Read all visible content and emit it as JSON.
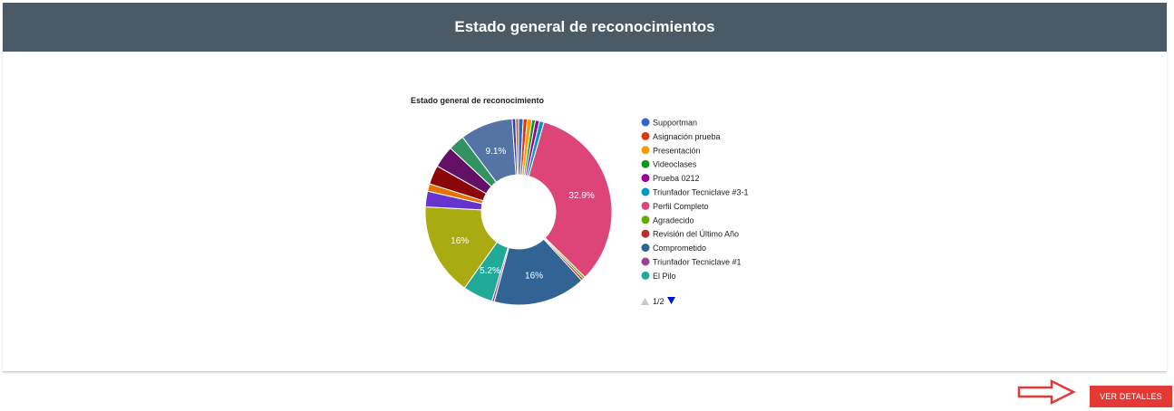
{
  "header": {
    "title": "Estado general de reconocimientos"
  },
  "actions": {
    "details_label": "VER DETALLES"
  },
  "colors": {
    "header_bg": "#4a5b67",
    "button_bg": "#e53935",
    "arrow": "#e53935"
  },
  "chart_data": {
    "type": "pie",
    "donut": true,
    "title": "Estado general de reconocimiento",
    "legend_position": "right",
    "legend_page": "1/2",
    "slices": [
      {
        "name": "Supportman",
        "value": 0.8,
        "color": "#3366cc"
      },
      {
        "name": "Asignación prueba",
        "value": 0.7,
        "color": "#dc3912"
      },
      {
        "name": "Presentación",
        "value": 0.8,
        "color": "#ff9900"
      },
      {
        "name": "Videoclases",
        "value": 0.6,
        "color": "#109618"
      },
      {
        "name": "Prueba 0212",
        "value": 0.7,
        "color": "#990099"
      },
      {
        "name": "Triunfador Tecniclave #3-1",
        "value": 0.8,
        "color": "#0099c6"
      },
      {
        "name": "Perfil Completo",
        "value": 32.9,
        "color": "#dd4477",
        "label": "32.9%"
      },
      {
        "name": "Agradecido",
        "value": 0.4,
        "color": "#66aa00"
      },
      {
        "name": "Revisión del Último Año",
        "value": 0.4,
        "color": "#b82e2e"
      },
      {
        "name": "Comprometido",
        "value": 16,
        "color": "#316395",
        "label": "16%"
      },
      {
        "name": "Triunfador Tecniclave #1",
        "value": 0.4,
        "color": "#994499"
      },
      {
        "name": "El Pilo",
        "value": 5.2,
        "color": "#22aa99",
        "label": "5.2%"
      },
      {
        "name": "",
        "value": 16,
        "color": "#aaaa11",
        "label": "16%"
      },
      {
        "name": "",
        "value": 2.7,
        "color": "#6633cc"
      },
      {
        "name": "",
        "value": 1.3,
        "color": "#e67300"
      },
      {
        "name": "",
        "value": 3.3,
        "color": "#8b0707"
      },
      {
        "name": "",
        "value": 3.8,
        "color": "#651067"
      },
      {
        "name": "",
        "value": 2.8,
        "color": "#329262"
      },
      {
        "name": "",
        "value": 9.1,
        "color": "#5574a6",
        "label": "9.1%"
      },
      {
        "name": "",
        "value": 0.6,
        "color": "#3b3eac"
      },
      {
        "name": "",
        "value": 0.5,
        "color": "#b77322"
      }
    ]
  }
}
